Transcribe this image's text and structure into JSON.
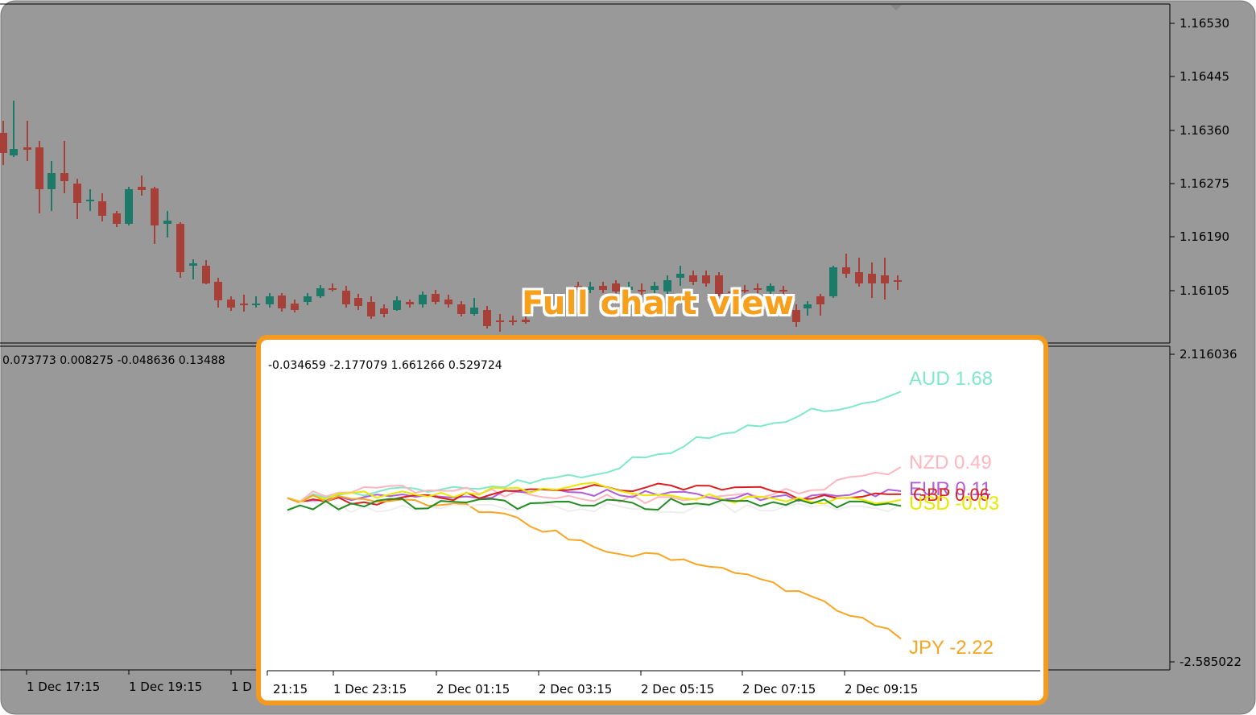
{
  "colors": {
    "panel_bg": "#999999",
    "bull_candle": "#1e7a68",
    "bear_candle": "#a8403a",
    "callout_border": "#f39a1f",
    "title": "#f7a01e"
  },
  "price_axis": {
    "labels": [
      "1.16530",
      "1.16445",
      "1.16360",
      "1.16275",
      "1.16190",
      "1.16105"
    ],
    "indicator_max": "2.116036",
    "indicator_min": "-2.585022"
  },
  "time_axis": {
    "labels": [
      "1 Dec 17:15",
      "1 Dec 19:15",
      "1 D"
    ]
  },
  "indicator_values_text": "0.073773 0.008275 -0.048636 0.13488",
  "title": "Full chart view",
  "inset": {
    "values_text": "-0.034659 -2.177079 1.661266 0.529724",
    "time_labels": [
      "21:15",
      "1 Dec 23:15",
      "2 Dec 01:15",
      "2 Dec 03:15",
      "2 Dec 05:15",
      "2 Dec 07:15",
      "2 Dec 09:15"
    ],
    "currencies": [
      {
        "label": "AUD 1.68",
        "color": "#7fe8c8"
      },
      {
        "label": "NZD 0.49",
        "color": "#ffb6c1"
      },
      {
        "label": "EUR 0.11",
        "color": "#b05fd6"
      },
      {
        "label": "GBP 0.06",
        "color": "#d82020"
      },
      {
        "label": "USD -0.03",
        "color": "#e8e800"
      },
      {
        "label": "JPY -2.22",
        "color": "#f5a623"
      }
    ]
  },
  "chart_data": {
    "type": "line",
    "title": "",
    "x": [
      "21:15",
      "1 Dec 23:15",
      "2 Dec 01:15",
      "2 Dec 03:15",
      "2 Dec 05:15",
      "2 Dec 07:15",
      "2 Dec 09:15"
    ],
    "series": [
      {
        "name": "AUD",
        "values": [
          0.0,
          0.1,
          0.2,
          0.4,
          0.9,
          1.3,
          1.68
        ]
      },
      {
        "name": "NZD",
        "values": [
          0.0,
          0.15,
          0.1,
          0.0,
          -0.05,
          0.1,
          0.49
        ]
      },
      {
        "name": "EUR",
        "values": [
          0.0,
          0.0,
          0.05,
          0.1,
          0.05,
          0.0,
          0.11
        ]
      },
      {
        "name": "GBP",
        "values": [
          0.0,
          -0.05,
          0.05,
          0.15,
          0.2,
          0.05,
          0.06
        ]
      },
      {
        "name": "USD",
        "values": [
          0.0,
          0.05,
          0.1,
          0.2,
          0.0,
          -0.05,
          -0.03
        ]
      },
      {
        "name": "JPY",
        "values": [
          0.0,
          -0.05,
          -0.2,
          -0.8,
          -1.0,
          -1.5,
          -2.22
        ]
      }
    ],
    "ylim": [
      -2.585022,
      2.116036
    ]
  }
}
